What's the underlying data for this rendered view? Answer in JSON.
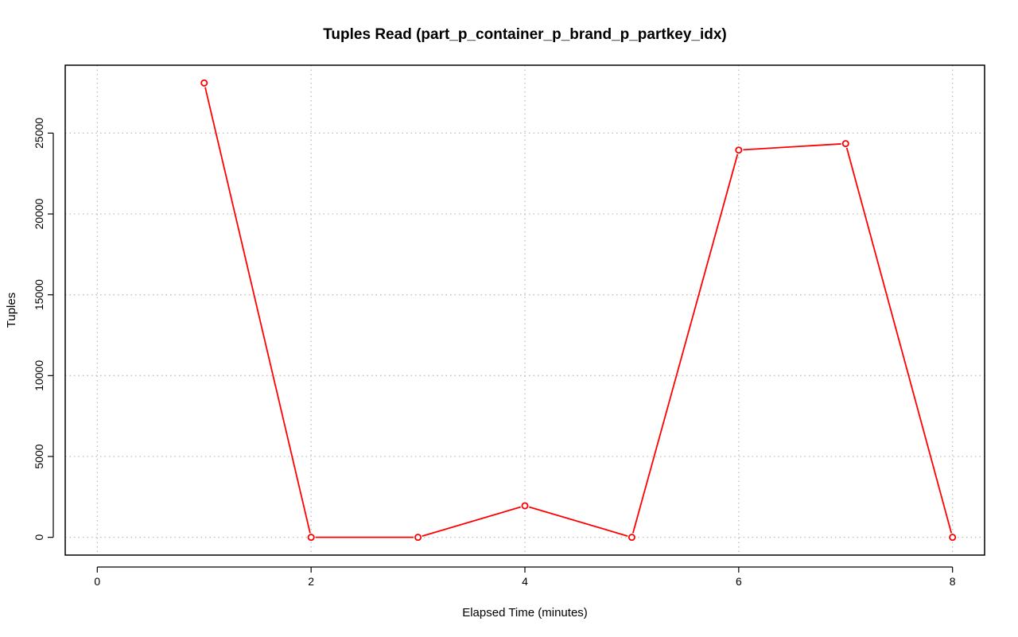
{
  "chart_data": {
    "type": "line",
    "title": "Tuples Read (part_p_container_p_brand_p_partkey_idx)",
    "xlabel": "Elapsed Time (minutes)",
    "ylabel": "Tuples",
    "x_ticks": [
      0,
      2,
      4,
      6,
      8
    ],
    "y_ticks": [
      0,
      5000,
      10000,
      15000,
      20000,
      25000
    ],
    "xlim": [
      -0.3,
      8.3
    ],
    "ylim": [
      -1100,
      29200
    ],
    "grid": true,
    "legend": "none",
    "series": [
      {
        "color": "#ff0000",
        "marker": "open-circle",
        "points": [
          {
            "x": 1,
            "y": 28100
          },
          {
            "x": 2,
            "y": 0
          },
          {
            "x": 3,
            "y": 0
          },
          {
            "x": 4,
            "y": 1950
          },
          {
            "x": 5,
            "y": 0
          },
          {
            "x": 6,
            "y": 23950
          },
          {
            "x": 7,
            "y": 24350
          },
          {
            "x": 8,
            "y": 0
          }
        ]
      }
    ]
  }
}
